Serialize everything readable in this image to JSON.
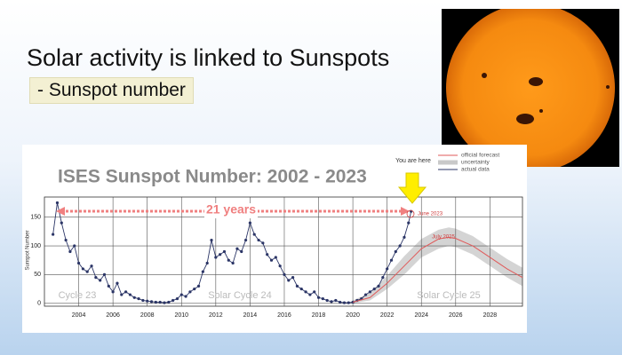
{
  "slide": {
    "title": "Solar activity is linked to Sunspots",
    "subtitle": "- Sunspot number"
  },
  "chart_data": {
    "type": "line",
    "title": "ISES Sunspot Number: 2002 - 2023",
    "y_label": "Sunspot Number",
    "xlim": [
      2002,
      2029.9
    ],
    "ylim": [
      -5,
      185
    ],
    "xticks": [
      2004,
      2006,
      2008,
      2010,
      2012,
      2014,
      2016,
      2018,
      2020,
      2022,
      2024,
      2026,
      2028
    ],
    "yticks": [
      0,
      50,
      100,
      150
    ],
    "grid": true,
    "legend": "upper right",
    "series": [
      {
        "name": "actual data",
        "color": "#2b3566",
        "x": [
          2002.5,
          2002.75,
          2003,
          2003.25,
          2003.5,
          2003.75,
          2004,
          2004.25,
          2004.5,
          2004.75,
          2005,
          2005.25,
          2005.5,
          2005.75,
          2006,
          2006.25,
          2006.5,
          2006.75,
          2007,
          2007.25,
          2007.5,
          2007.75,
          2008,
          2008.25,
          2008.5,
          2008.75,
          2009,
          2009.25,
          2009.5,
          2009.75,
          2010,
          2010.25,
          2010.5,
          2010.75,
          2011,
          2011.25,
          2011.5,
          2011.75,
          2012,
          2012.25,
          2012.5,
          2012.75,
          2013,
          2013.25,
          2013.5,
          2013.75,
          2014,
          2014.25,
          2014.5,
          2014.75,
          2015,
          2015.25,
          2015.5,
          2015.75,
          2016,
          2016.25,
          2016.5,
          2016.75,
          2017,
          2017.25,
          2017.5,
          2017.75,
          2018,
          2018.25,
          2018.5,
          2018.75,
          2019,
          2019.25,
          2019.5,
          2019.75,
          2020,
          2020.25,
          2020.5,
          2020.75,
          2021,
          2021.25,
          2021.5,
          2021.75,
          2022,
          2022.25,
          2022.5,
          2022.75,
          2023,
          2023.25,
          2023.4
        ],
        "values": [
          120,
          175,
          140,
          110,
          90,
          100,
          70,
          60,
          55,
          65,
          45,
          40,
          50,
          30,
          20,
          35,
          15,
          20,
          15,
          10,
          8,
          5,
          4,
          3,
          2,
          2,
          1,
          2,
          5,
          8,
          15,
          12,
          20,
          25,
          30,
          55,
          70,
          110,
          80,
          85,
          90,
          75,
          70,
          95,
          90,
          110,
          140,
          120,
          110,
          105,
          85,
          75,
          80,
          65,
          50,
          40,
          45,
          30,
          25,
          20,
          15,
          20,
          10,
          8,
          5,
          3,
          5,
          2,
          1,
          1,
          2,
          5,
          8,
          15,
          20,
          25,
          30,
          45,
          60,
          75,
          90,
          100,
          115,
          140,
          160
        ]
      },
      {
        "name": "official forecast",
        "color": "#e05a5a",
        "x": [
          2020,
          2021,
          2022,
          2023,
          2024,
          2025,
          2025.6,
          2026,
          2027,
          2028,
          2029,
          2029.9
        ],
        "values": [
          2,
          10,
          35,
          65,
          95,
          112,
          115,
          113,
          100,
          80,
          60,
          45
        ]
      }
    ],
    "band": {
      "name": "uncertainty",
      "color": "#c9c9c9",
      "x": [
        2020,
        2021,
        2022,
        2023,
        2024,
        2025,
        2025.6,
        2026,
        2027,
        2028,
        2029,
        2029.9
      ],
      "lower": [
        0,
        5,
        25,
        50,
        80,
        95,
        100,
        98,
        85,
        65,
        45,
        30
      ],
      "upper": [
        5,
        18,
        48,
        82,
        112,
        128,
        132,
        130,
        117,
        97,
        77,
        62
      ]
    },
    "annotations": [
      "21 years",
      "June 2023",
      "July 2025",
      "You are here",
      "Cycle 23",
      "Solar Cycle 24",
      "Solar Cycle 25"
    ]
  }
}
